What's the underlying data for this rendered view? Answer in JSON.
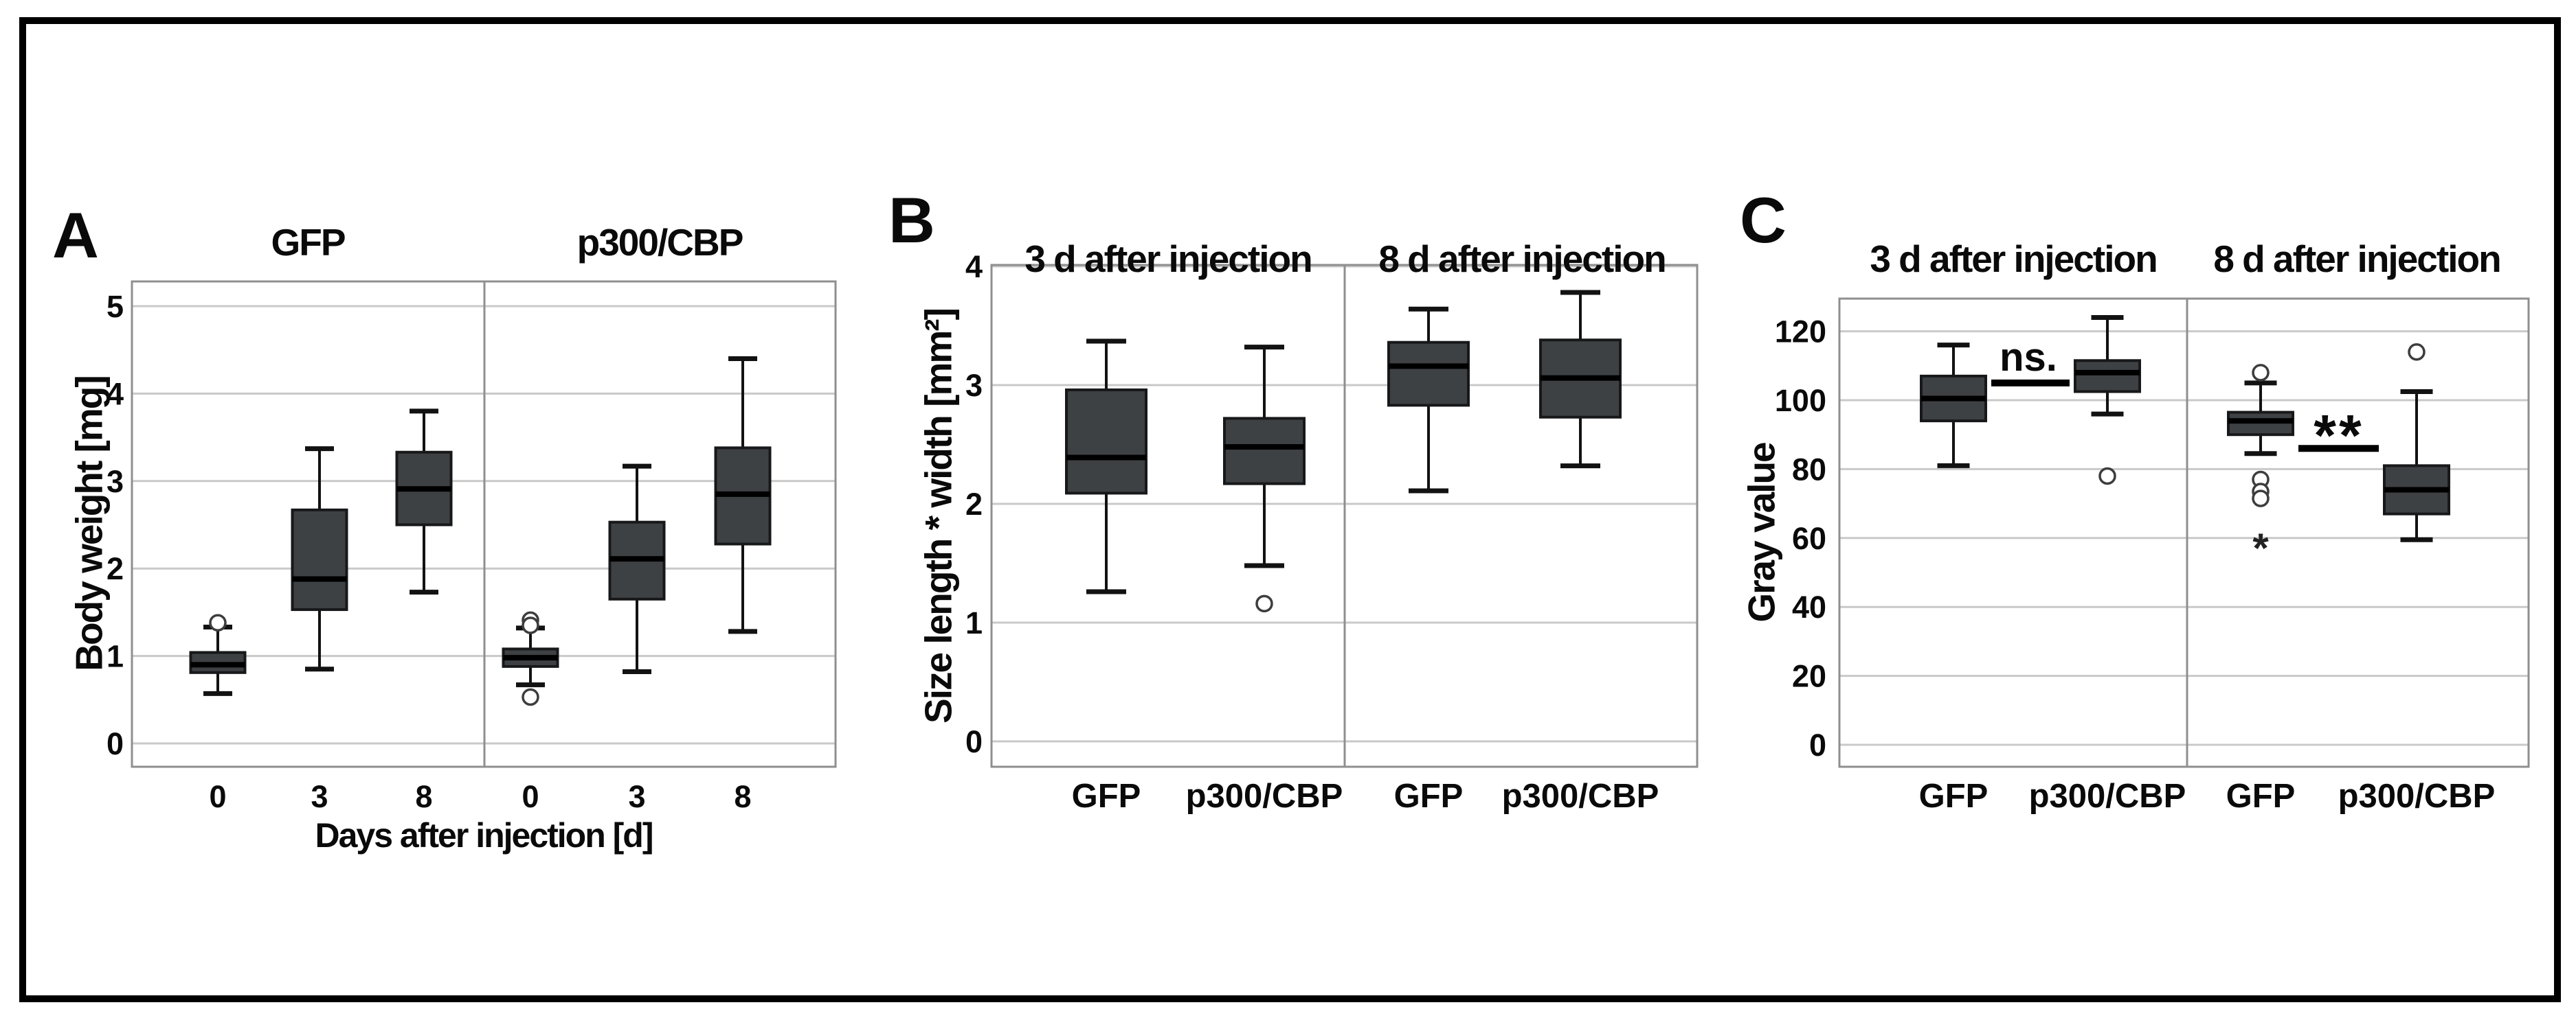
{
  "figure": {
    "background": "#ffffff",
    "border_color": "#000000"
  },
  "colors": {
    "box_fill": "#3e4144",
    "box_stroke": "#17181a",
    "median": "#000000",
    "whisker": "#121212",
    "gridline": "#c9c9c9",
    "frame": "#8f8f8f",
    "text": "#0a0a0a",
    "outlier_stroke": "#3d3d3d",
    "sig_line": "#000000"
  },
  "chart_data": [
    {
      "id": "A",
      "type": "box",
      "panel_label": "A",
      "group_titles": [
        "GFP",
        "p300/CBP"
      ],
      "ylabel": "Body weight [mg]",
      "xlabel": "Days after injection [d]",
      "yticks": [
        0,
        1,
        2,
        3,
        4,
        5
      ],
      "ylim": [
        -0.3,
        5.3
      ],
      "grid": true,
      "boxes": [
        {
          "group": "GFP",
          "x": "0",
          "low": 0.57,
          "q1": 0.81,
          "median": 0.9,
          "q3": 1.04,
          "high": 1.33,
          "outliers": [
            1.38
          ],
          "extremes": []
        },
        {
          "group": "GFP",
          "x": "3",
          "low": 0.85,
          "q1": 1.53,
          "median": 1.88,
          "q3": 2.67,
          "high": 3.37,
          "outliers": [],
          "extremes": []
        },
        {
          "group": "GFP",
          "x": "8",
          "low": 1.73,
          "q1": 2.5,
          "median": 2.91,
          "q3": 3.33,
          "high": 3.8,
          "outliers": [],
          "extremes": []
        },
        {
          "group": "p300/CBP",
          "x": "0",
          "low": 0.67,
          "q1": 0.88,
          "median": 0.98,
          "q3": 1.08,
          "high": 1.32,
          "outliers": [
            1.41,
            1.35,
            0.53
          ],
          "extremes": []
        },
        {
          "group": "p300/CBP",
          "x": "3",
          "low": 0.82,
          "q1": 1.65,
          "median": 2.11,
          "q3": 2.53,
          "high": 3.17,
          "outliers": [],
          "extremes": []
        },
        {
          "group": "p300/CBP",
          "x": "8",
          "low": 1.28,
          "q1": 2.28,
          "median": 2.85,
          "q3": 3.38,
          "high": 4.4,
          "outliers": [],
          "extremes": []
        }
      ],
      "annotations": []
    },
    {
      "id": "B",
      "type": "box",
      "panel_label": "B",
      "group_titles": [
        "3 d after injection",
        "8 d after injection"
      ],
      "ylabel": "Size length * width [mm²]",
      "xlabel": "",
      "yticks": [
        0,
        1,
        2,
        3,
        4
      ],
      "ylim": [
        -0.25,
        4.0
      ],
      "grid": true,
      "boxes": [
        {
          "group": "3 d after injection",
          "x": "GFP",
          "low": 1.26,
          "q1": 2.09,
          "median": 2.39,
          "q3": 2.96,
          "high": 3.37,
          "outliers": [],
          "extremes": []
        },
        {
          "group": "3 d after injection",
          "x": "p300/CBP",
          "low": 1.48,
          "q1": 2.17,
          "median": 2.48,
          "q3": 2.72,
          "high": 3.32,
          "outliers": [
            1.16
          ],
          "extremes": []
        },
        {
          "group": "8 d after injection",
          "x": "GFP",
          "low": 2.11,
          "q1": 2.83,
          "median": 3.16,
          "q3": 3.36,
          "high": 3.64,
          "outliers": [],
          "extremes": []
        },
        {
          "group": "8 d after injection",
          "x": "p300/CBP",
          "low": 2.32,
          "q1": 2.73,
          "median": 3.06,
          "q3": 3.38,
          "high": 3.78,
          "outliers": [],
          "extremes": []
        }
      ],
      "annotations": []
    },
    {
      "id": "C",
      "type": "box",
      "panel_label": "C",
      "group_titles": [
        "3 d after injection",
        "8 d after injection"
      ],
      "ylabel": "Gray value",
      "xlabel": "",
      "yticks": [
        0,
        20,
        40,
        60,
        80,
        100,
        120
      ],
      "ylim": [
        -6,
        129
      ],
      "grid": true,
      "boxes": [
        {
          "group": "3 d after injection",
          "x": "GFP",
          "low": 81,
          "q1": 94,
          "median": 100.5,
          "q3": 107,
          "high": 116,
          "outliers": [],
          "extremes": []
        },
        {
          "group": "3 d after injection",
          "x": "p300/CBP",
          "low": 96,
          "q1": 102.5,
          "median": 108,
          "q3": 111.5,
          "high": 124,
          "outliers": [
            78
          ],
          "extremes": []
        },
        {
          "group": "8 d after injection",
          "x": "GFP",
          "low": 84.5,
          "q1": 90,
          "median": 94,
          "q3": 96.5,
          "high": 105,
          "outliers": [
            108,
            77,
            73.5,
            71.5
          ],
          "extremes": [
            57
          ]
        },
        {
          "group": "8 d after injection",
          "x": "p300/CBP",
          "low": 59.5,
          "q1": 67,
          "median": 74,
          "q3": 81,
          "high": 102.5,
          "outliers": [
            114
          ],
          "extremes": []
        }
      ],
      "annotations": [
        {
          "label": "ns.",
          "between": [
            0,
            1
          ],
          "line_y": 105
        },
        {
          "label": "**",
          "between": [
            2,
            3
          ],
          "line_y": 86
        }
      ]
    }
  ]
}
